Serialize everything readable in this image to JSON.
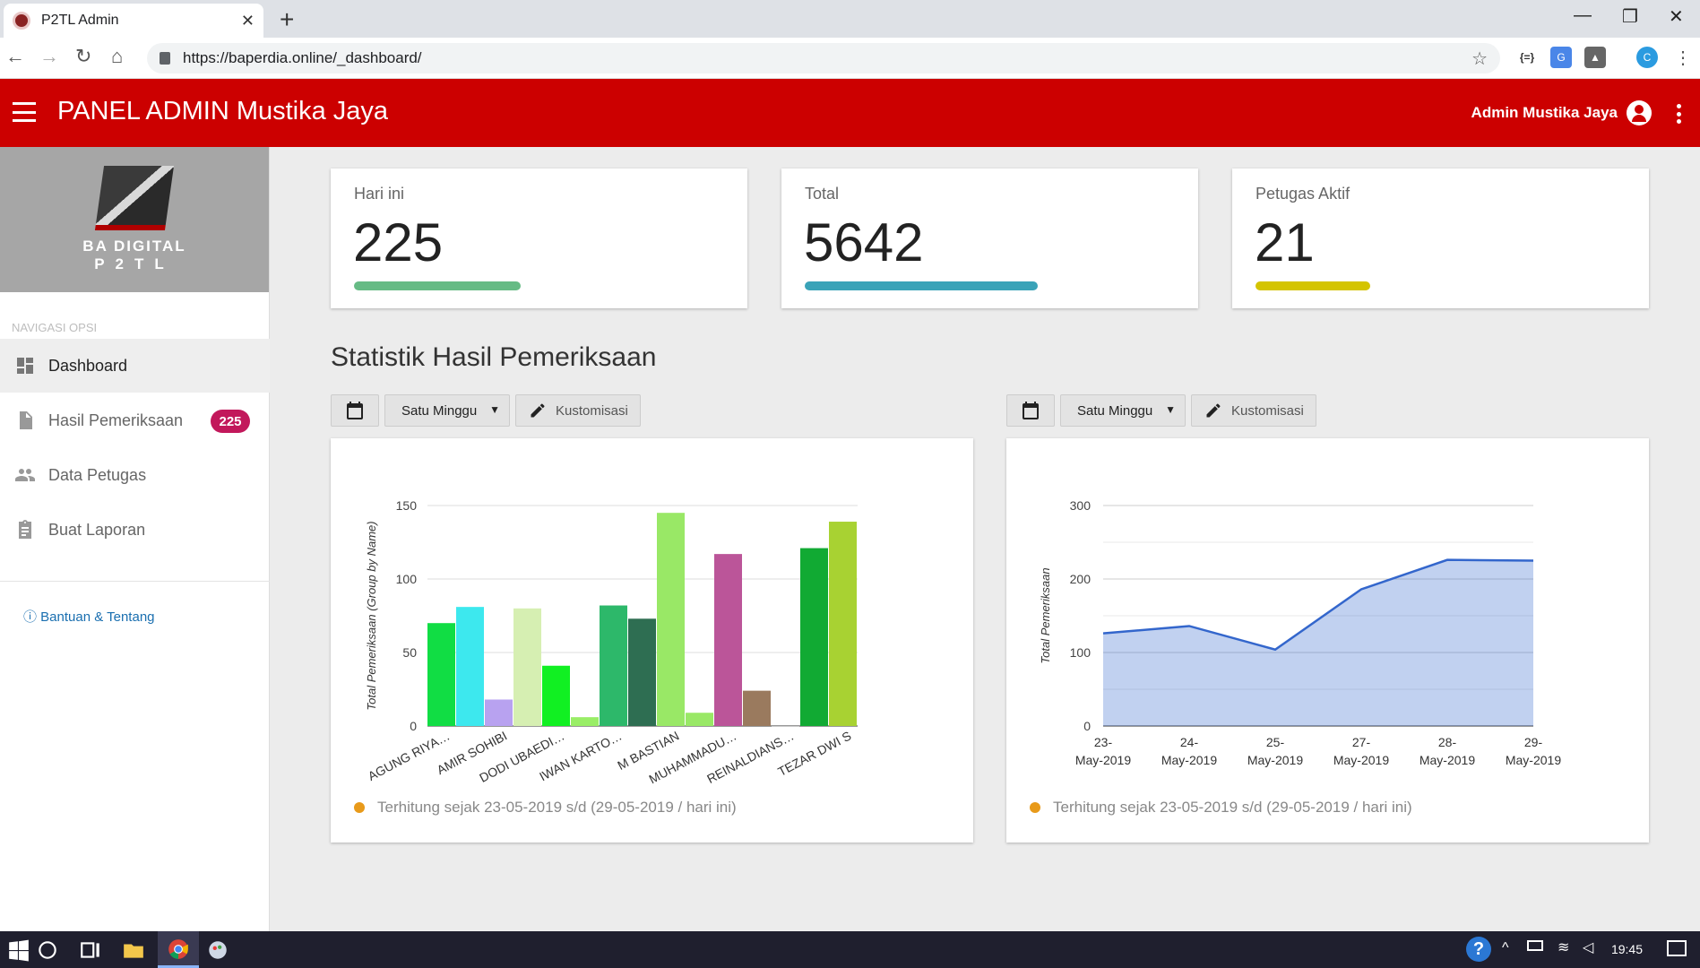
{
  "browser": {
    "tab_title": "P2TL Admin",
    "url": "https://baperdia.online/_dashboard/"
  },
  "header": {
    "title": "PANEL ADMIN Mustika Jaya",
    "user": "Admin Mustika Jaya"
  },
  "sidebar": {
    "logo_line1": "BA DIGITAL",
    "logo_line2": "P2TL",
    "heading": "NAVIGASI OPSI",
    "items": [
      {
        "label": "Dashboard",
        "icon": "dashboard-icon",
        "active": true
      },
      {
        "label": "Hasil Pemeriksaan",
        "icon": "document-icon",
        "badge": "225"
      },
      {
        "label": "Data Petugas",
        "icon": "people-icon"
      },
      {
        "label": "Buat Laporan",
        "icon": "clipboard-icon"
      }
    ],
    "help": "Bantuan & Tentang"
  },
  "stats": [
    {
      "label": "Hari ini",
      "value": "225",
      "color": "#66bb85",
      "fill": 0.45
    },
    {
      "label": "Total",
      "value": "5642",
      "color": "#3aa3b8",
      "fill": 0.63
    },
    {
      "label": "Petugas Aktif",
      "value": "21",
      "color": "#d4c400",
      "fill": 0.31
    }
  ],
  "section": {
    "title": "Statistik Hasil Pemeriksaan",
    "range_select": "Satu Minggu",
    "customize": "Kustomisasi",
    "footnote": "Terhitung sejak 23-05-2019 s/d (29-05-2019 / hari ini)"
  },
  "chart_data": [
    {
      "type": "bar",
      "ylabel": "Total Pemeriksaan (Group by Name)",
      "ylim": [
        0,
        150
      ],
      "yticks": [
        0,
        50,
        100,
        150
      ],
      "tick_labels": [
        "AGUNG RIYA…",
        "AMIR SOHIBI",
        "DODI UBAEDI…",
        "IWAN KARTO…",
        "M BASTIAN",
        "MUHAMMADU…",
        "REINALDIANS…",
        "TEZAR DWI S"
      ],
      "bars": [
        {
          "value": 70,
          "color": "#11dd44"
        },
        {
          "value": 81,
          "color": "#3de8ee"
        },
        {
          "value": 18,
          "color": "#b8a2f0"
        },
        {
          "value": 80,
          "color": "#d6efb2"
        },
        {
          "value": 41,
          "color": "#11f022"
        },
        {
          "value": 6,
          "color": "#99ee66"
        },
        {
          "value": 82,
          "color": "#2db86a"
        },
        {
          "value": 73,
          "color": "#2e6e52"
        },
        {
          "value": 145,
          "color": "#99e866"
        },
        {
          "value": 9,
          "color": "#99e866"
        },
        {
          "value": 117,
          "color": "#bb5599"
        },
        {
          "value": 24,
          "color": "#9a7a5e"
        },
        {
          "value": 0,
          "color": "#cccccc"
        },
        {
          "value": 121,
          "color": "#11aa33"
        },
        {
          "value": 139,
          "color": "#a8d232"
        }
      ]
    },
    {
      "type": "area",
      "ylabel": "Total Pemeriksaan",
      "ylim": [
        0,
        300
      ],
      "yticks": [
        0,
        100,
        200,
        300
      ],
      "x": [
        "23-May-2019",
        "24-May-2019",
        "25-May-2019",
        "27-May-2019",
        "28-May-2019",
        "29-May-2019"
      ],
      "values": [
        126,
        136,
        104,
        186,
        226,
        225
      ],
      "color": "#3366cc"
    }
  ],
  "taskbar": {
    "time": "19:45"
  }
}
